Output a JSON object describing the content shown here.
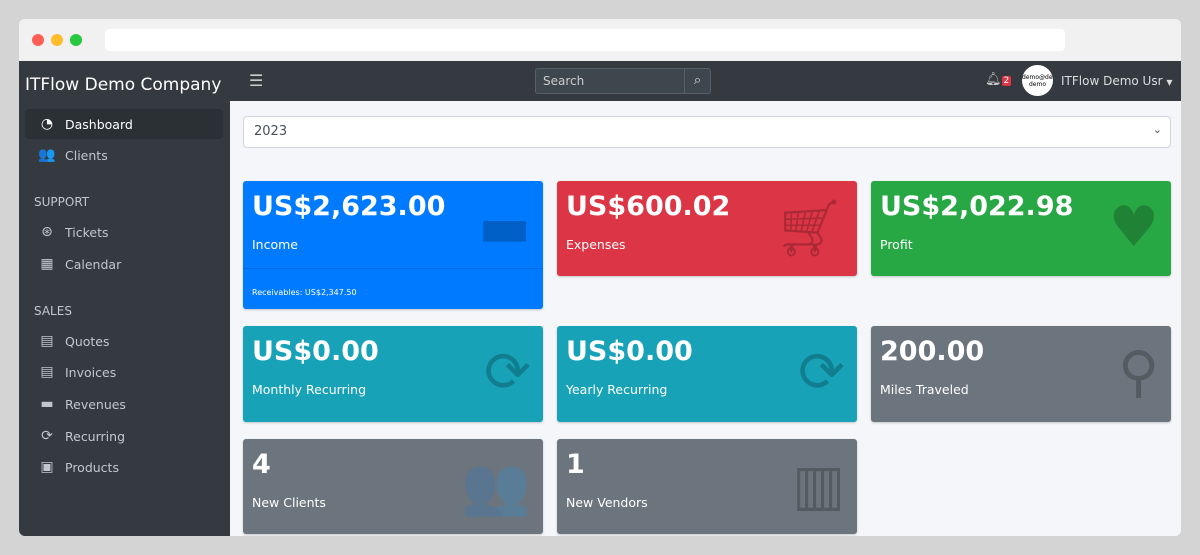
{
  "sidebar": {
    "brand": "ITFlow Demo Company",
    "items": [
      {
        "label": "Dashboard",
        "icon": "tachometer-icon"
      },
      {
        "label": "Clients",
        "icon": "users-icon"
      }
    ],
    "support_header": "SUPPORT",
    "support": [
      {
        "label": "Tickets",
        "icon": "life-ring-icon"
      },
      {
        "label": "Calendar",
        "icon": "calendar-icon"
      }
    ],
    "sales_header": "SALES",
    "sales": [
      {
        "label": "Quotes",
        "icon": "file-icon"
      },
      {
        "label": "Invoices",
        "icon": "invoice-icon"
      },
      {
        "label": "Revenues",
        "icon": "credit-card-icon"
      },
      {
        "label": "Recurring",
        "icon": "sync-icon"
      },
      {
        "label": "Products",
        "icon": "box-icon"
      }
    ]
  },
  "topbar": {
    "search_placeholder": "Search",
    "notifications": "2",
    "avatar_text": "demo@demo demo",
    "user": "ITFlow Demo Usr"
  },
  "year": "2023",
  "cards": [
    {
      "value": "US$2,623.00",
      "label": "Income",
      "footer": "Receivables: US$2,347.50",
      "color": "#007bff"
    },
    {
      "value": "US$600.02",
      "label": "Expenses",
      "color": "#dc3545"
    },
    {
      "value": "US$2,022.98",
      "label": "Profit",
      "color": "#28a745"
    },
    {
      "value": "US$0.00",
      "label": "Monthly Recurring",
      "color": "#17a2b8"
    },
    {
      "value": "US$0.00",
      "label": "Yearly Recurring",
      "color": "#17a2b8"
    },
    {
      "value": "200.00",
      "label": "Miles Traveled",
      "color": "#6c757d"
    },
    {
      "value": "4",
      "label": "New Clients",
      "color": "#6c757d"
    },
    {
      "value": "1",
      "label": "New Vendors",
      "color": "#6c757d"
    }
  ]
}
